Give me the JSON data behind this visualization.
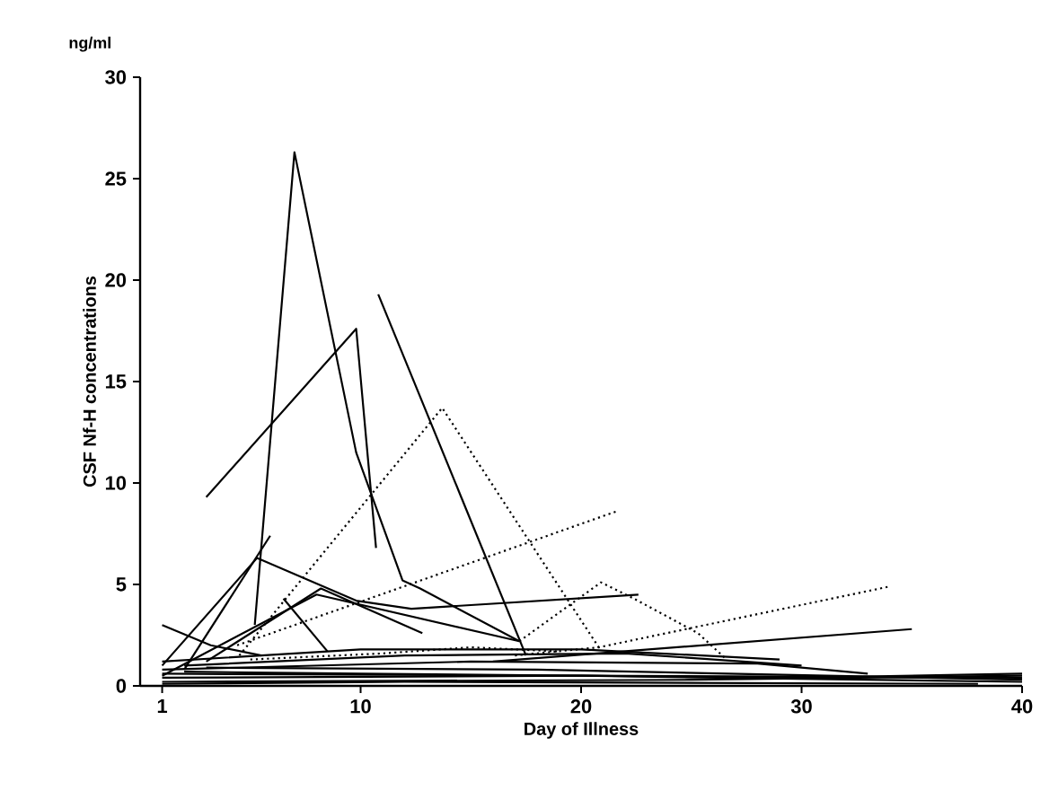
{
  "chart_data": {
    "type": "line",
    "xlabel": "Day of Illness",
    "ylabel": "CSF Nf-H concentrations",
    "annotations": [
      "ng/ml"
    ],
    "xlim": [
      0,
      40
    ],
    "ylim": [
      0,
      30
    ],
    "xticks": [
      1,
      10,
      20,
      30,
      40
    ],
    "yticks": [
      0,
      5,
      10,
      15,
      20,
      25,
      30
    ],
    "series": [
      {
        "color": "#000000",
        "line_style": "solid",
        "x": [
          5.2,
          7,
          9.8,
          11.9,
          12.7,
          17.2
        ],
        "values": [
          3.0,
          26.3,
          11.5,
          5.2,
          4.8,
          2.2
        ]
      },
      {
        "color": "#000000",
        "line_style": "solid",
        "x": [
          3.0,
          9.8,
          10.7
        ],
        "values": [
          9.3,
          17.6,
          6.8
        ]
      },
      {
        "color": "#000000",
        "line_style": "solid",
        "x": [
          10.8,
          17.5
        ],
        "values": [
          19.3,
          1.5
        ]
      },
      {
        "color": "#000000",
        "line_style": "dotted",
        "x": [
          4.5,
          13.7,
          20.8
        ],
        "values": [
          1.5,
          13.7,
          1.9
        ]
      },
      {
        "color": "#000000",
        "line_style": "dotted",
        "x": [
          4.4,
          21.6
        ],
        "values": [
          2.0,
          8.6
        ]
      },
      {
        "color": "#000000",
        "line_style": "dotted",
        "x": [
          17.2,
          20.9,
          22.4,
          25.3,
          26.5
        ],
        "values": [
          2.2,
          5.1,
          4.3,
          2.6,
          1.4
        ]
      },
      {
        "color": "#000000",
        "line_style": "dotted",
        "x": [
          17,
          20.8,
          34
        ],
        "values": [
          1.5,
          1.9,
          4.9
        ]
      },
      {
        "color": "#000000",
        "line_style": "solid",
        "x": [
          16,
          35
        ],
        "values": [
          1.2,
          2.8
        ]
      },
      {
        "color": "#000000",
        "line_style": "solid",
        "x": [
          1,
          5.3,
          9.8,
          12.3,
          22.6
        ],
        "values": [
          1.0,
          6.3,
          4.2,
          3.8,
          4.5
        ]
      },
      {
        "color": "#000000",
        "line_style": "solid",
        "x": [
          1,
          3.2,
          5.5
        ],
        "values": [
          3.0,
          2.0,
          1.5
        ]
      },
      {
        "color": "#000000",
        "line_style": "solid",
        "x": [
          2,
          5.9
        ],
        "values": [
          0.8,
          7.4
        ]
      },
      {
        "color": "#000000",
        "line_style": "solid",
        "x": [
          3,
          8.2,
          12.8
        ],
        "values": [
          1.2,
          4.8,
          2.6
        ]
      },
      {
        "color": "#000000",
        "line_style": "solid",
        "x": [
          6.5,
          8.5
        ],
        "values": [
          4.3,
          1.7
        ]
      },
      {
        "color": "#000000",
        "line_style": "solid",
        "x": [
          1,
          8,
          17.2
        ],
        "values": [
          0.5,
          4.5,
          2.2
        ]
      },
      {
        "color": "#000000",
        "line_style": "solid",
        "x": [
          1,
          10,
          20,
          29
        ],
        "values": [
          1.2,
          1.8,
          1.8,
          1.3
        ]
      },
      {
        "color": "#000000",
        "line_style": "solid",
        "x": [
          2,
          12,
          22,
          30
        ],
        "values": [
          1.0,
          1.5,
          1.6,
          1.0
        ]
      },
      {
        "color": "#000000",
        "line_style": "dotted",
        "x": [
          5,
          11,
          15,
          19
        ],
        "values": [
          1.3,
          1.6,
          1.9,
          1.7
        ]
      },
      {
        "color": "#000000",
        "line_style": "solid",
        "x": [
          1,
          15,
          28,
          33
        ],
        "values": [
          0.8,
          1.2,
          1.1,
          0.6
        ]
      },
      {
        "color": "#000000",
        "line_style": "solid",
        "x": [
          1,
          40
        ],
        "values": [
          0.6,
          0.4
        ]
      },
      {
        "color": "#000000",
        "line_style": "solid",
        "x": [
          1,
          20,
          40
        ],
        "values": [
          0.4,
          0.5,
          0.2
        ]
      },
      {
        "color": "#000000",
        "line_style": "solid",
        "x": [
          1,
          25,
          40
        ],
        "values": [
          0.2,
          0.3,
          0.5
        ]
      },
      {
        "color": "#000000",
        "line_style": "solid",
        "x": [
          2,
          10,
          30,
          40
        ],
        "values": [
          0.7,
          0.6,
          0.4,
          0.6
        ]
      },
      {
        "color": "#000000",
        "line_style": "solid",
        "x": [
          1,
          12,
          38
        ],
        "values": [
          0.1,
          0.2,
          0.1
        ]
      },
      {
        "color": "#000000",
        "line_style": "solid",
        "x": [
          3,
          18,
          40
        ],
        "values": [
          0.9,
          0.8,
          0.3
        ]
      }
    ]
  }
}
